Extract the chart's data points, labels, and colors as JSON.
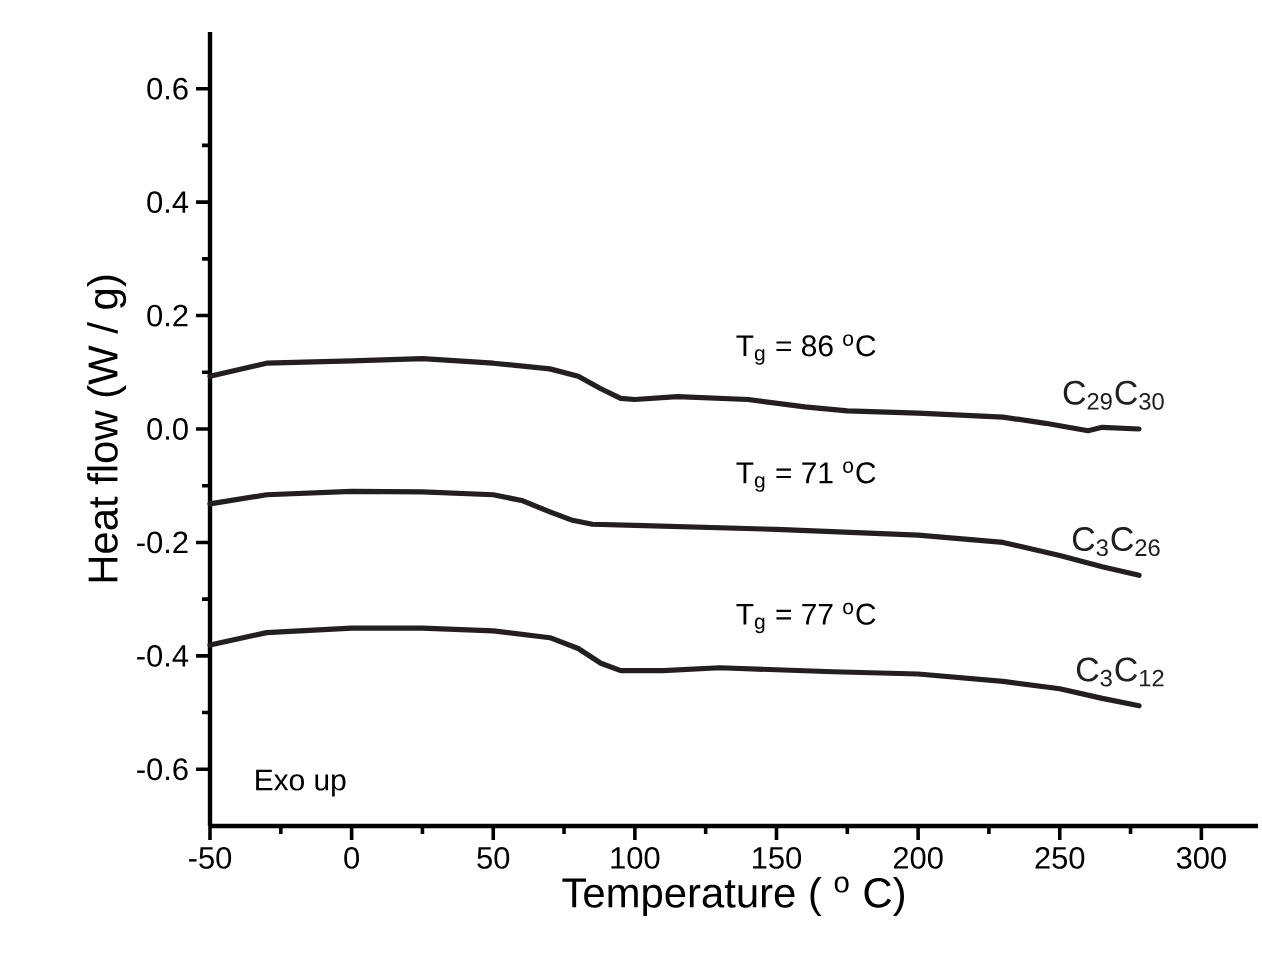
{
  "chart_data": {
    "type": "line",
    "xlabel": "Temperature ( $^{o}$ C)",
    "ylabel": "Heat flow (W / g)",
    "xlim": [
      -50,
      320
    ],
    "ylim": [
      -0.7,
      0.7
    ],
    "xticks": [
      -50,
      0,
      50,
      100,
      150,
      200,
      250,
      300
    ],
    "yticks": [
      -0.6,
      -0.4,
      -0.2,
      {
        "value": 0,
        "label": "0.0"
      },
      0.2,
      0.4,
      0.6
    ],
    "legend": false,
    "marker": "none",
    "line_style": "solid",
    "grid": false,
    "annotations": [
      "T$_{g}$ = 86 $^{o}$C",
      "T$_{g}$ = 71 $^{o}$C",
      "T$_{g}$ = 77 $^{o}$C",
      "Exo up"
    ],
    "series": [
      {
        "name": "C$_{29}$C$_{30}$",
        "color": "#231f20",
        "x": [
          -50,
          -30,
          0,
          25,
          50,
          70,
          80,
          88,
          95,
          100,
          115,
          140,
          160,
          175,
          200,
          230,
          245,
          260,
          265,
          278
        ],
        "values": [
          0.093,
          0.116,
          0.12,
          0.124,
          0.116,
          0.106,
          0.093,
          0.071,
          0.054,
          0.052,
          0.057,
          0.052,
          0.039,
          0.032,
          0.028,
          0.021,
          0.01,
          -0.003,
          0.003,
          0
        ]
      },
      {
        "name": "C$_{3}$C$_{26}$",
        "color": "#231f20",
        "x": [
          -50,
          -30,
          0,
          25,
          50,
          60,
          70,
          78,
          85,
          100,
          150,
          200,
          230,
          250,
          265,
          278
        ],
        "values": [
          -0.132,
          -0.116,
          -0.11,
          -0.111,
          -0.116,
          -0.126,
          -0.146,
          -0.161,
          -0.168,
          -0.17,
          -0.177,
          -0.187,
          -0.2,
          -0.223,
          -0.243,
          -0.258
        ]
      },
      {
        "name": "C$_{3}$C$_{12}$",
        "color": "#231f20",
        "x": [
          -50,
          -30,
          0,
          25,
          50,
          70,
          80,
          88,
          95,
          110,
          130,
          170,
          200,
          230,
          250,
          265,
          278
        ],
        "values": [
          -0.381,
          -0.359,
          -0.351,
          -0.351,
          -0.356,
          -0.368,
          -0.387,
          -0.413,
          -0.426,
          -0.426,
          -0.421,
          -0.428,
          -0.432,
          -0.445,
          -0.458,
          -0.475,
          -0.488
        ]
      }
    ]
  }
}
